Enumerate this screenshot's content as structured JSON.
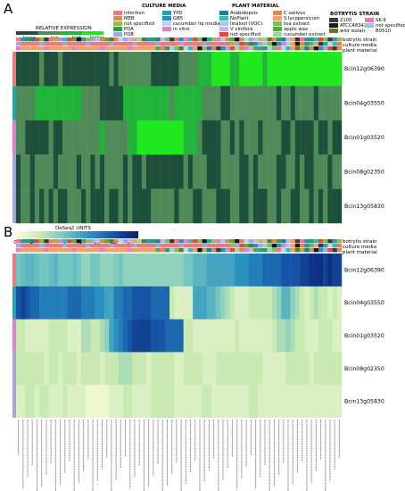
{
  "panels": [
    {
      "letter": "A",
      "scale_title": "RELATIVE EXPRESSION",
      "scale_labels": [
        "lower",
        "low",
        "high",
        "higher"
      ],
      "scale_colors": [
        "#1e4f3b",
        "#4f8a58",
        "#22b33a",
        "#1fe81f"
      ],
      "row_labels": [
        "Bcin12g06390",
        "Bcin04g03550",
        "Bcin01g03520",
        "Bcin08g02350",
        "Bcin13g05830"
      ],
      "annotation_labels": [
        "botrytis strain",
        "culture media",
        "plant material"
      ]
    },
    {
      "letter": "B",
      "scale_title": "DeSeq2 UNITS",
      "scale_ticks": [
        "0",
        "2",
        "4",
        "6",
        "8",
        "10",
        "12",
        "14"
      ],
      "scale_colors": [
        "#ffffe0",
        "#c9e9b3",
        "#74c6c0",
        "#2a92c2",
        "#1453a6",
        "#0a1f6e"
      ],
      "row_labels": [
        "Bcin12g06390",
        "Bcin04g03550",
        "Bcin01g03520",
        "Bcin08g02350",
        "Bcin13g05830"
      ],
      "annotation_labels": [
        "botrytis strain",
        "culture media",
        "plant material"
      ]
    }
  ],
  "legends": {
    "culture_media": {
      "title": "CULTURE MEDIA",
      "items": [
        {
          "label": "infection",
          "color": "#f07878"
        },
        {
          "label": "YPD",
          "color": "#28a0a8"
        },
        {
          "label": "MEB",
          "color": "#d88a5a"
        },
        {
          "label": "GB5",
          "color": "#2b8fc1"
        },
        {
          "label": "not specified",
          "color": "#a0b848"
        },
        {
          "label": "cucumber liq media",
          "color": "#b8d8f0"
        },
        {
          "label": "PDA",
          "color": "#2ea04a"
        },
        {
          "label": "in vitro",
          "color": "#e080c8"
        },
        {
          "label": "PDB",
          "color": "#a4a4e0"
        }
      ]
    },
    "plant_material": {
      "title": "PLANT MATERIAL",
      "items": [
        {
          "label": "Arabidopsis",
          "color": "#247c9c"
        },
        {
          "label": "C sativus",
          "color": "#d88858"
        },
        {
          "label": "NoPlant",
          "color": "#38b8b8"
        },
        {
          "label": "S lycopersicum",
          "color": "#f0a068"
        },
        {
          "label": "linalool (VOC)",
          "color": "#a8cce8"
        },
        {
          "label": "tea extract",
          "color": "#78c058"
        },
        {
          "label": "V vinifera",
          "color": "#c8b4e4"
        },
        {
          "label": "apple wax",
          "color": "#58a848"
        },
        {
          "label": "not specified",
          "color": "#e84830"
        },
        {
          "label": "cucumber extract",
          "color": "#98d8a8"
        }
      ]
    },
    "botrytis_strain": {
      "title": "BOTRYTIS STRAIN",
      "items": [
        {
          "label": "2100",
          "color": "#3a3a3a"
        },
        {
          "label": "SK-9",
          "color": "#e080b0"
        },
        {
          "label": "ATCC48342",
          "color": "#181818"
        },
        {
          "label": "not specified",
          "color": "#a0c0e0"
        },
        {
          "label": "wild isolate",
          "color": "#707028"
        },
        {
          "label": "B0510",
          "color": "#f0f0f0"
        }
      ]
    }
  },
  "chart_data": [
    {
      "type": "heatmap",
      "title": "",
      "colorbar_title": "RELATIVE EXPRESSION",
      "colorbar_labels": [
        "lower",
        "low",
        "high",
        "higher"
      ],
      "rows": [
        "Bcin12g06390",
        "Bcin04g03550",
        "Bcin01g03520",
        "Bcin08g02350",
        "Bcin13g05830"
      ],
      "n_columns": 70,
      "values": [
        [
          0,
          0,
          0,
          0,
          0,
          1,
          0,
          0,
          0,
          1,
          0,
          0,
          0,
          0,
          0,
          0,
          0,
          0,
          0,
          0,
          1,
          0,
          1,
          1,
          1,
          1,
          1,
          1,
          1,
          0,
          0,
          0,
          0,
          0,
          0,
          1,
          1,
          1,
          1,
          2,
          2,
          2,
          3,
          3,
          3,
          3,
          2,
          2,
          3,
          3,
          3,
          3,
          3,
          2,
          3,
          3,
          3,
          3,
          3,
          3,
          3,
          3,
          3,
          3,
          3,
          3,
          3,
          3,
          3,
          3
        ],
        [
          1,
          1,
          1,
          1,
          2,
          2,
          2,
          2,
          2,
          2,
          2,
          2,
          2,
          2,
          1,
          1,
          1,
          1,
          0,
          0,
          0,
          0,
          0,
          2,
          2,
          2,
          2,
          2,
          2,
          2,
          2,
          2,
          2,
          1,
          2,
          2,
          2,
          2,
          2,
          2,
          1,
          1,
          1,
          1,
          0,
          0,
          1,
          1,
          1,
          1,
          1,
          1,
          1,
          1,
          1,
          1,
          0,
          1,
          1,
          0,
          1,
          1,
          1,
          1,
          0,
          1,
          1,
          1,
          1,
          1
        ],
        [
          1,
          1,
          0,
          0,
          0,
          0,
          0,
          1,
          0,
          0,
          1,
          1,
          1,
          1,
          1,
          1,
          1,
          1,
          2,
          1,
          1,
          1,
          1,
          1,
          2,
          2,
          3,
          3,
          3,
          3,
          3,
          3,
          3,
          3,
          3,
          3,
          2,
          2,
          2,
          1,
          0,
          0,
          0,
          0,
          1,
          1,
          0,
          1,
          0,
          1,
          1,
          1,
          0,
          1,
          1,
          1,
          1,
          0,
          0,
          1,
          0,
          0,
          0,
          0,
          1,
          0,
          0,
          1,
          0,
          0
        ],
        [
          0,
          1,
          1,
          0,
          1,
          1,
          1,
          1,
          0,
          1,
          1,
          1,
          1,
          0,
          1,
          1,
          0,
          1,
          0,
          1,
          1,
          1,
          1,
          0,
          1,
          0,
          0,
          1,
          0,
          0,
          0,
          0,
          0,
          0,
          0,
          0,
          1,
          0,
          1,
          1,
          1,
          0,
          0,
          0,
          1,
          1,
          1,
          1,
          0,
          0,
          1,
          0,
          1,
          1,
          1,
          1,
          0,
          0,
          1,
          1,
          0,
          1,
          0,
          0,
          1,
          1,
          1,
          0,
          1,
          1
        ],
        [
          0,
          1,
          1,
          0,
          1,
          0,
          1,
          0,
          1,
          0,
          0,
          1,
          1,
          1,
          0,
          1,
          0,
          0,
          0,
          1,
          0,
          0,
          1,
          0,
          1,
          0,
          0,
          0,
          0,
          1,
          1,
          1,
          1,
          1,
          0,
          1,
          1,
          1,
          0,
          0,
          1,
          1,
          1,
          0,
          0,
          0,
          1,
          1,
          0,
          0,
          1,
          0,
          0,
          0,
          1,
          1,
          0,
          1,
          1,
          0,
          0,
          1,
          1,
          0,
          1,
          0,
          1,
          0,
          0,
          0
        ]
      ]
    },
    {
      "type": "heatmap",
      "title": "",
      "colorbar_title": "DeSeq2 UNITS",
      "colorbar_range": [
        0,
        15
      ],
      "rows": [
        "Bcin12g06390",
        "Bcin04g03550",
        "Bcin01g03520",
        "Bcin08g02350",
        "Bcin13g05830"
      ],
      "n_columns": 70,
      "values": [
        [
          6,
          6.5,
          7,
          7,
          6.5,
          6,
          6,
          6.5,
          7,
          6,
          6,
          6,
          6.5,
          6,
          5,
          5,
          6,
          6,
          5,
          5,
          5,
          5.5,
          6,
          5,
          5,
          5,
          5,
          5,
          5,
          5,
          5,
          5,
          5,
          5,
          5,
          5,
          6,
          6,
          7,
          7,
          7,
          8,
          8,
          8,
          8,
          8,
          8,
          9,
          9,
          9,
          10,
          10,
          10,
          11,
          11,
          11,
          11,
          12,
          12,
          12,
          12,
          13,
          13,
          14,
          14,
          14,
          13,
          14,
          13,
          13
        ],
        [
          12,
          13,
          12,
          11,
          11,
          10,
          10,
          10,
          10,
          10,
          10,
          11,
          11,
          11,
          10,
          10,
          10,
          9,
          9,
          8,
          8,
          10,
          10,
          11,
          11,
          12,
          12,
          12,
          12,
          11,
          11,
          11,
          11,
          3,
          2,
          2,
          2,
          2,
          8,
          8,
          8,
          7,
          7,
          6,
          5,
          4,
          3,
          2,
          2,
          2,
          3,
          3,
          3,
          3,
          3,
          4,
          5,
          7,
          7,
          5,
          4,
          3,
          2,
          3,
          4,
          3,
          3,
          2,
          3,
          2
        ],
        [
          3,
          3,
          2,
          2,
          2,
          2,
          2,
          3,
          3,
          3,
          3,
          2,
          2,
          2,
          4,
          4,
          3,
          3,
          4,
          5,
          8,
          9,
          10,
          11,
          12,
          13,
          13,
          13,
          13,
          12,
          12,
          12,
          11,
          11,
          11,
          11,
          3,
          3,
          2,
          2,
          2,
          2,
          2,
          2,
          2,
          2,
          2,
          3,
          2,
          2,
          2,
          2,
          2,
          2,
          2,
          3,
          4,
          4,
          5,
          4,
          3,
          3,
          2,
          2,
          2,
          3,
          3,
          3,
          2,
          2
        ],
        [
          3,
          3,
          3,
          3,
          3,
          3,
          2,
          3,
          3,
          2,
          3,
          3,
          3,
          2,
          3,
          3,
          3,
          3,
          2,
          3,
          3,
          3,
          4,
          4,
          4,
          3,
          3,
          3,
          2,
          3,
          3,
          3,
          3,
          3,
          2,
          2,
          3,
          3,
          3,
          3,
          2,
          2,
          2,
          3,
          3,
          3,
          3,
          3,
          3,
          3,
          3,
          3,
          3,
          2,
          2,
          2,
          2,
          2,
          3,
          3,
          3,
          3,
          3,
          2,
          3,
          3,
          3,
          3,
          3,
          3
        ],
        [
          2,
          2,
          3,
          3,
          2,
          3,
          3,
          2,
          2,
          2,
          3,
          2,
          2,
          2,
          2,
          1,
          1,
          1,
          1,
          1,
          2,
          2,
          2,
          3,
          3,
          2,
          2,
          2,
          2,
          3,
          3,
          3,
          3,
          3,
          2,
          2,
          2,
          2,
          2,
          2,
          3,
          3,
          2,
          2,
          2,
          2,
          2,
          2,
          2,
          2,
          3,
          3,
          2,
          2,
          2,
          2,
          2,
          2,
          2,
          2,
          2,
          2,
          2,
          2,
          2,
          2,
          2,
          2,
          2,
          2
        ]
      ]
    }
  ]
}
